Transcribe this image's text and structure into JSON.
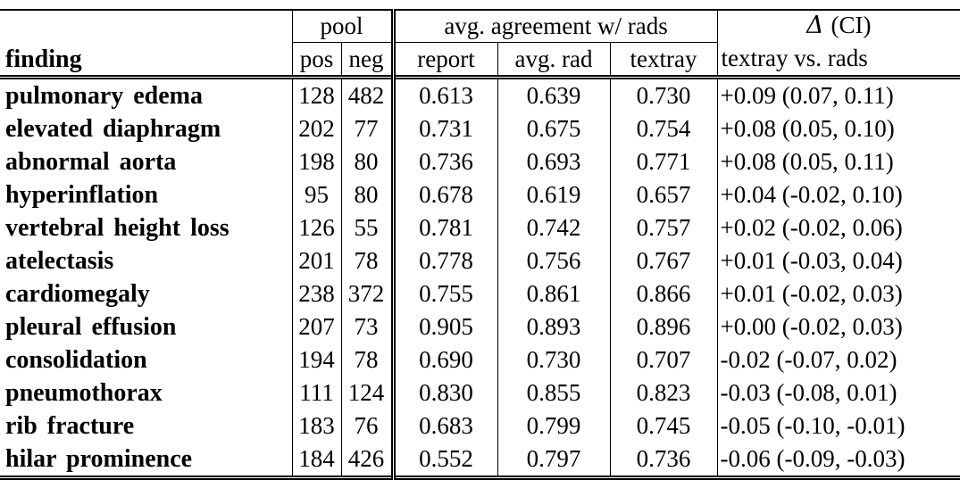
{
  "table": {
    "header": {
      "finding": "finding",
      "pool": "pool",
      "pos": "pos",
      "neg": "neg",
      "agreement": "avg. agreement w/ rads",
      "report": "report",
      "avg_rad": "avg. rad",
      "textray": "textray",
      "delta_symbol": "Δ",
      "delta_ci": "(CI)",
      "delta_sub": "textray vs. rads"
    },
    "rows": [
      {
        "finding": "pulmonary edema",
        "pos": "128",
        "neg": "482",
        "report": "0.613",
        "avg_rad": "0.639",
        "textray": "0.730",
        "delta": "+0.09 (0.07, 0.11)"
      },
      {
        "finding": "elevated diaphragm",
        "pos": "202",
        "neg": "77",
        "report": "0.731",
        "avg_rad": "0.675",
        "textray": "0.754",
        "delta": "+0.08 (0.05, 0.10)"
      },
      {
        "finding": "abnormal aorta",
        "pos": "198",
        "neg": "80",
        "report": "0.736",
        "avg_rad": "0.693",
        "textray": "0.771",
        "delta": "+0.08 (0.05, 0.11)"
      },
      {
        "finding": "hyperinflation",
        "pos": "95",
        "neg": "80",
        "report": "0.678",
        "avg_rad": "0.619",
        "textray": "0.657",
        "delta": "+0.04 (-0.02, 0.10)"
      },
      {
        "finding": "vertebral height loss",
        "pos": "126",
        "neg": "55",
        "report": "0.781",
        "avg_rad": "0.742",
        "textray": "0.757",
        "delta": "+0.02 (-0.02, 0.06)"
      },
      {
        "finding": "atelectasis",
        "pos": "201",
        "neg": "78",
        "report": "0.778",
        "avg_rad": "0.756",
        "textray": "0.767",
        "delta": "+0.01 (-0.03, 0.04)"
      },
      {
        "finding": "cardiomegaly",
        "pos": "238",
        "neg": "372",
        "report": "0.755",
        "avg_rad": "0.861",
        "textray": "0.866",
        "delta": "+0.01 (-0.02, 0.03)"
      },
      {
        "finding": "pleural effusion",
        "pos": "207",
        "neg": "73",
        "report": "0.905",
        "avg_rad": "0.893",
        "textray": "0.896",
        "delta": "+0.00 (-0.02, 0.03)"
      },
      {
        "finding": "consolidation",
        "pos": "194",
        "neg": "78",
        "report": "0.690",
        "avg_rad": "0.730",
        "textray": "0.707",
        "delta": "-0.02 (-0.07, 0.02)"
      },
      {
        "finding": "pneumothorax",
        "pos": "111",
        "neg": "124",
        "report": "0.830",
        "avg_rad": "0.855",
        "textray": "0.823",
        "delta": "-0.03 (-0.08, 0.01)"
      },
      {
        "finding": "rib fracture",
        "pos": "183",
        "neg": "76",
        "report": "0.683",
        "avg_rad": "0.799",
        "textray": "0.745",
        "delta": "-0.05 (-0.10, -0.01)"
      },
      {
        "finding": "hilar prominence",
        "pos": "184",
        "neg": "426",
        "report": "0.552",
        "avg_rad": "0.797",
        "textray": "0.736",
        "delta": "-0.06 (-0.09, -0.03)"
      }
    ]
  }
}
